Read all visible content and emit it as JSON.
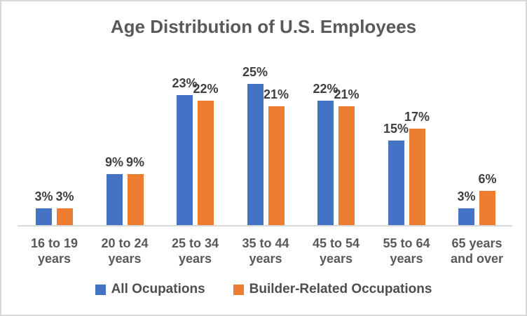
{
  "chart": {
    "title": "Age Distribution of U.S. Employees"
  },
  "chart_data": {
    "type": "bar",
    "title": "Age Distribution of U.S. Employees",
    "categories": [
      "16 to 19 years",
      "20 to 24 years",
      "25 to 34 years",
      "35 to 44 years",
      "45 to 54 years",
      "55 to 64 years",
      "65 years and over"
    ],
    "tick_labels": [
      "16 to 19\nyears",
      "20 to 24\nyears",
      "25 to 34\nyears",
      "35 to 44\nyears",
      "45 to 54\nyears",
      "55 to 64\nyears",
      "65 years\nand over"
    ],
    "series": [
      {
        "name": "All Ocupations",
        "color": "#4472C4",
        "values": [
          3,
          9,
          23,
          25,
          22,
          15,
          3
        ]
      },
      {
        "name": "Builder-Related Occupations",
        "color": "#ED7D31",
        "values": [
          3,
          9,
          22,
          21,
          21,
          17,
          6
        ]
      }
    ],
    "value_suffix": "%",
    "data_labels": true,
    "legend_position": "bottom",
    "grid": false,
    "y_axis": {
      "visible": false,
      "range": [
        0,
        30
      ]
    },
    "xlabel": "",
    "ylabel": ""
  },
  "colors": {
    "background": "#FFFFFF",
    "frame_border": "#D8D8D8",
    "axis_line": "#D9D9D9",
    "title_text": "#595959",
    "axis_text": "#595959",
    "data_label_text": "#404040",
    "legend_text": "#4E4E4E"
  }
}
